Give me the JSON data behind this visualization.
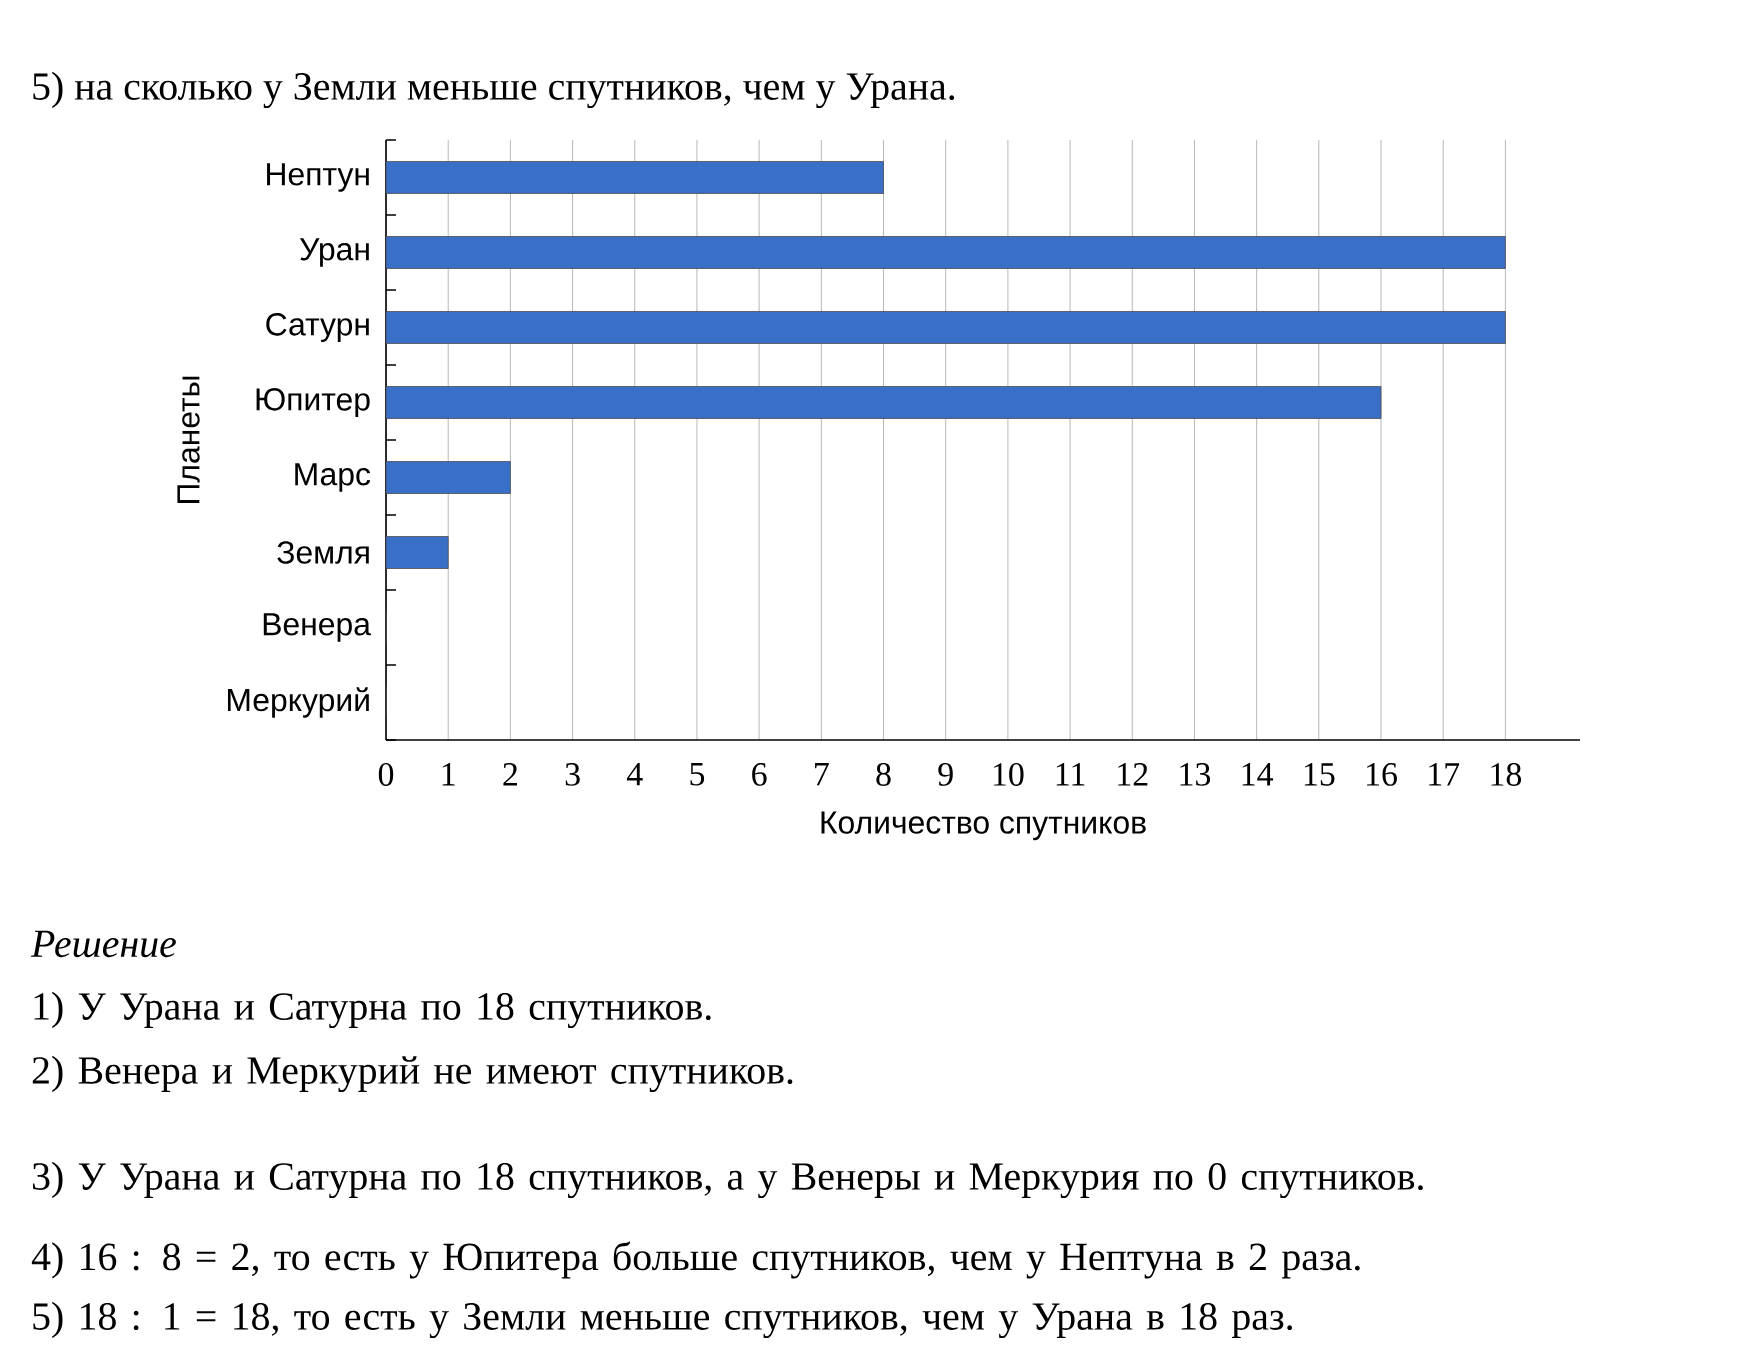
{
  "chart_data": {
    "type": "bar",
    "orientation": "horizontal",
    "title": "5) на сколько у Земли меньше спутников, чем у Урана.",
    "xlabel": "Количество спутников",
    "ylabel": "Планеты",
    "categories": [
      "Нептун",
      "Уран",
      "Сатурн",
      "Юпитер",
      "Марс",
      "Земля",
      "Венера",
      "Меркурий"
    ],
    "values": [
      8,
      18,
      18,
      16,
      2,
      1,
      0,
      0
    ],
    "color": "#3a6fc8",
    "xlim": [
      0,
      19.2
    ],
    "xticks": [
      0,
      1,
      2,
      3,
      4,
      5,
      6,
      7,
      8,
      9,
      10,
      11,
      12,
      13,
      14,
      15,
      16,
      17,
      18
    ],
    "grid": "x",
    "annotations": [
      "Решение",
      "1) У Урана и Сатурна по 18 спутников.",
      "2) Венера и Меркурий не имеют спутников.",
      "3) У Урана и Сатурна по 18 спутников, а у Венеры и Меркурия по 0 спутников.",
      "4) 16 : 8 = 2, то есть у Юпитера больше спутников, чем у Нептуна в 2 раза.",
      "5) 18 : 1 = 18, то есть у Земли меньше спутников, чем у Урана в 18 раз."
    ]
  }
}
